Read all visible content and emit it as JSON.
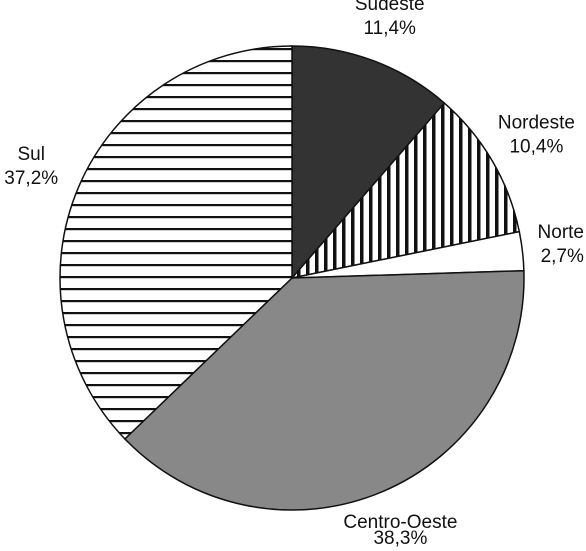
{
  "chart_data": {
    "type": "pie",
    "categories": [
      "Sudeste",
      "Nordeste",
      "Norte",
      "Centro-Oeste",
      "Sul"
    ],
    "values": [
      11.4,
      10.4,
      2.7,
      38.3,
      37.2
    ],
    "value_labels": [
      "11,4%",
      "10,4%",
      "2,7%",
      "38,3%",
      "37,2%"
    ],
    "colors": [
      "#333333",
      "vertical-hatch",
      "#ffffff",
      "#888888",
      "horizontal-hatch"
    ]
  }
}
